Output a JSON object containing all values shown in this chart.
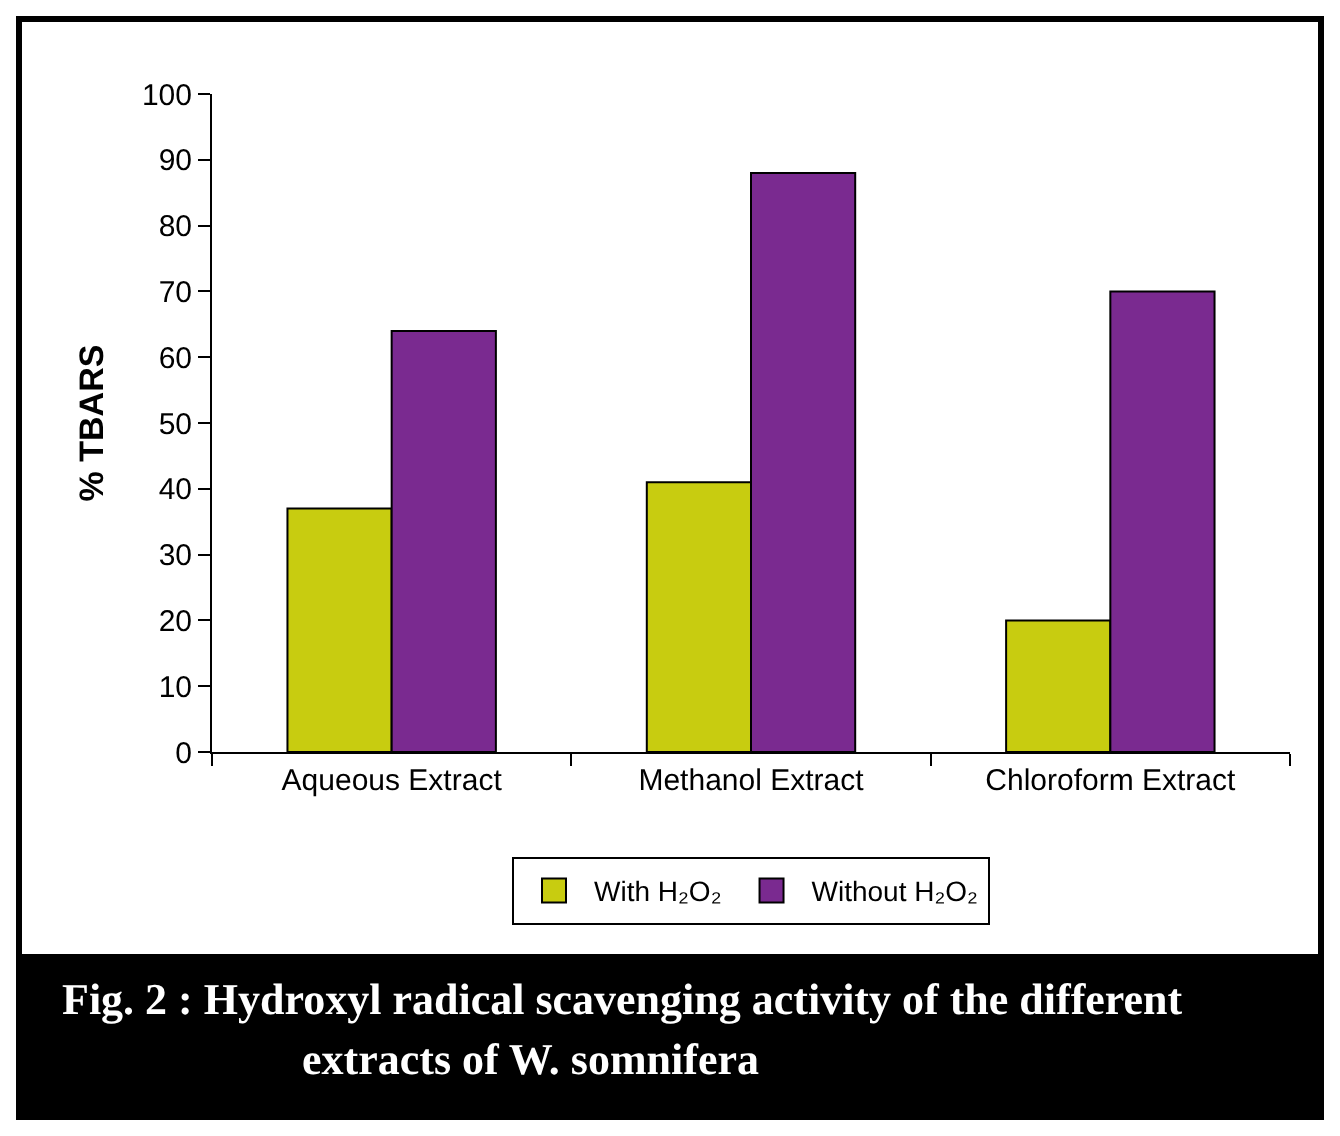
{
  "chart_data": {
    "type": "bar",
    "title": "Fig. 2 :    Hydroxyl radical scavenging activity of the different extracts of W. somnifera",
    "ylabel": "% TBARS",
    "categories": [
      "Aqueous Extract",
      "Methanol Extract",
      "Chloroform Extract"
    ],
    "series": [
      {
        "name": "With H₂O₂",
        "color": "#c8cc10",
        "values": [
          37,
          41,
          20
        ]
      },
      {
        "name": "Without H₂O₂",
        "color": "#7a2a90",
        "values": [
          64,
          88,
          70
        ]
      }
    ],
    "ylim": [
      0,
      100
    ],
    "yticks": [
      0,
      10,
      20,
      30,
      40,
      50,
      60,
      70,
      80,
      90,
      100
    ],
    "legend": "bottom"
  }
}
